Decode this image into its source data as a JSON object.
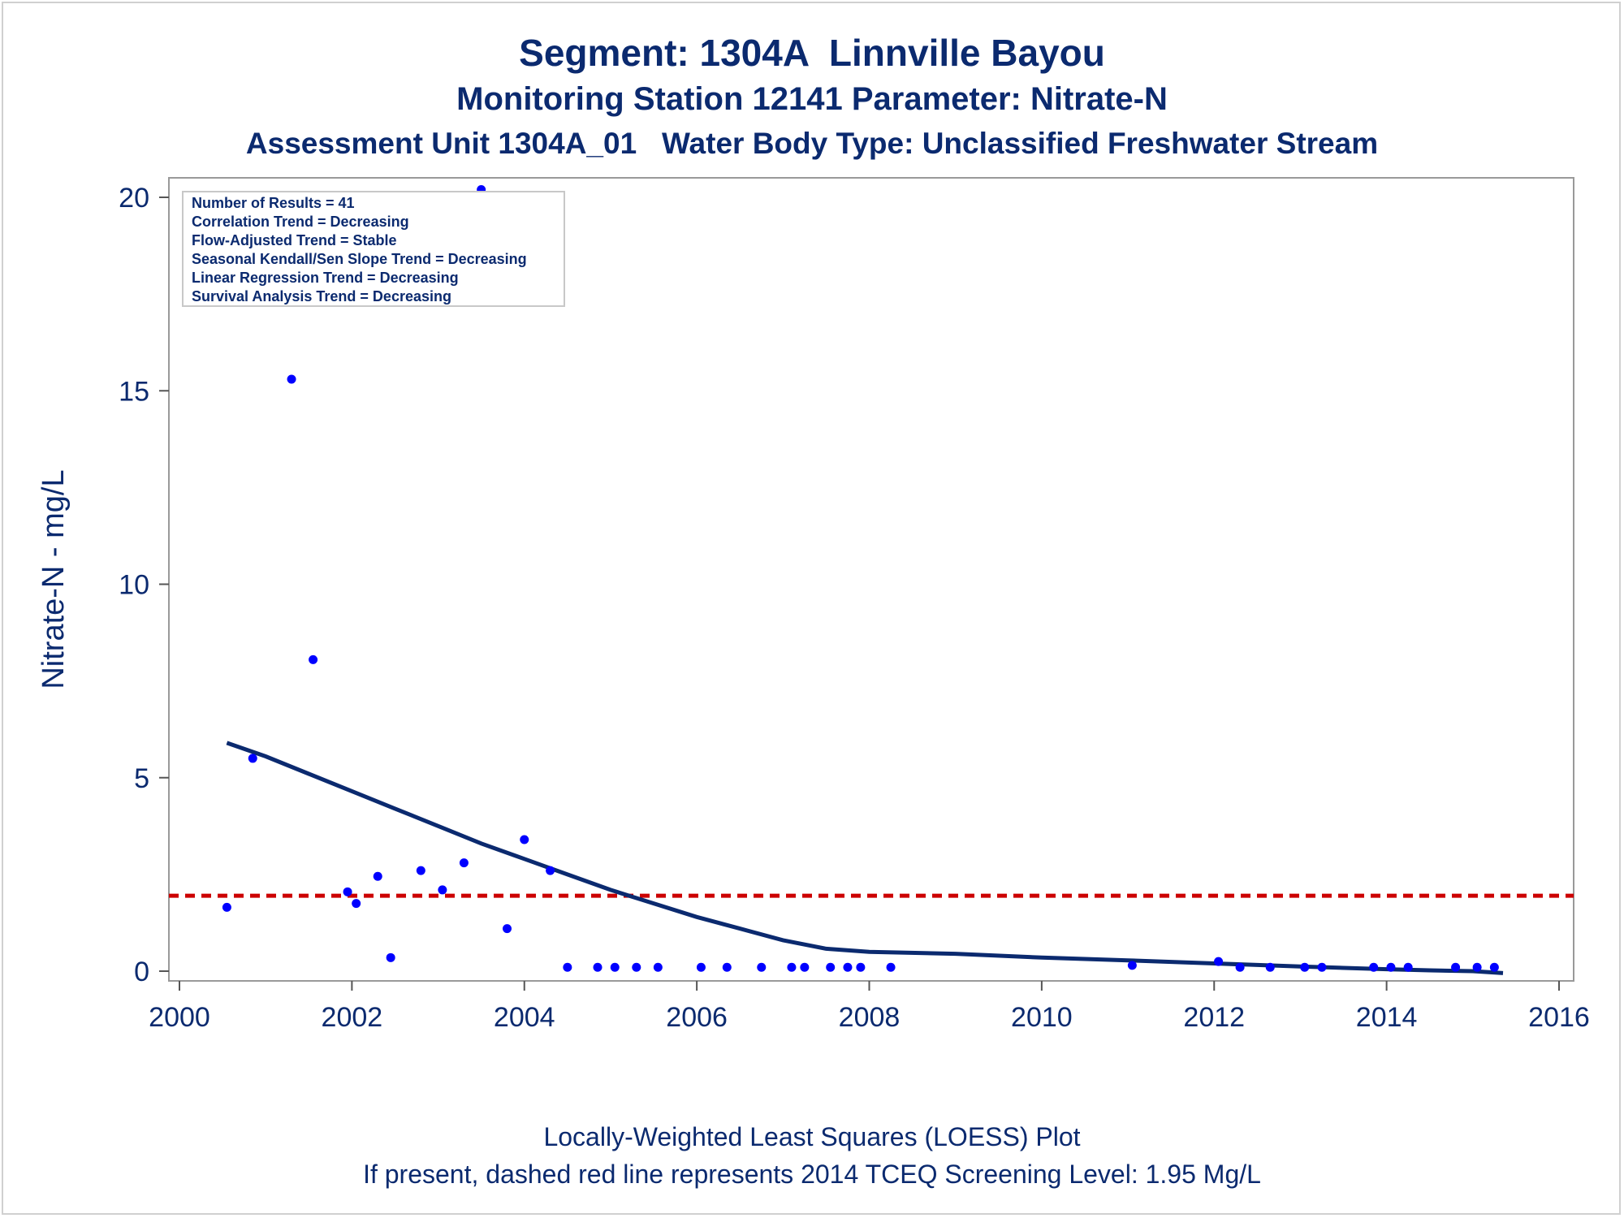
{
  "chart_data": {
    "type": "scatter",
    "title": "Segment: 1304A  Linnville Bayou",
    "subtitle": "Monitoring Station 12141 Parameter: Nitrate-N",
    "subtitle2": "Assessment Unit 1304A_01   Water Body Type: Unclassified Freshwater Stream",
    "xlabel": "",
    "ylabel": "Nitrate-N - mg/L",
    "xlim": [
      2000,
      2016
    ],
    "ylim": [
      0,
      20
    ],
    "x_ticks": [
      2000,
      2002,
      2004,
      2006,
      2008,
      2010,
      2012,
      2014,
      2016
    ],
    "y_ticks": [
      0,
      5,
      10,
      15,
      20
    ],
    "grid": false,
    "points": {
      "x": [
        2000.55,
        2000.85,
        2001.3,
        2001.55,
        2001.95,
        2002.05,
        2002.3,
        2002.45,
        2002.8,
        2003.05,
        2003.3,
        2003.5,
        2003.8,
        2004.0,
        2004.3,
        2004.5,
        2004.85,
        2005.05,
        2005.3,
        2005.55,
        2006.05,
        2006.35,
        2006.75,
        2007.1,
        2007.25,
        2007.55,
        2007.75,
        2007.9,
        2008.25,
        2011.05,
        2012.05,
        2012.3,
        2012.65,
        2013.05,
        2013.25,
        2013.85,
        2014.05,
        2014.25,
        2014.8,
        2015.05,
        2015.25
      ],
      "y": [
        1.65,
        5.5,
        15.3,
        8.05,
        2.05,
        1.75,
        2.45,
        0.35,
        2.6,
        2.1,
        2.8,
        20.2,
        1.1,
        3.4,
        2.6,
        0.1,
        0.1,
        0.1,
        0.1,
        0.1,
        0.1,
        0.1,
        0.1,
        0.1,
        0.1,
        0.1,
        0.1,
        0.1,
        0.1,
        0.15,
        0.25,
        0.1,
        0.1,
        0.1,
        0.1,
        0.1,
        0.1,
        0.1,
        0.1,
        0.1,
        0.1
      ]
    },
    "loess": {
      "x": [
        2000.55,
        2001.0,
        2001.5,
        2002.0,
        2002.5,
        2003.0,
        2003.5,
        2004.0,
        2004.5,
        2005.0,
        2005.5,
        2006.0,
        2006.5,
        2007.0,
        2007.5,
        2008.0,
        2009.0,
        2010.0,
        2011.0,
        2012.0,
        2013.0,
        2014.0,
        2014.5,
        2015.0,
        2015.35
      ],
      "y": [
        5.9,
        5.55,
        5.1,
        4.65,
        4.2,
        3.75,
        3.3,
        2.9,
        2.5,
        2.1,
        1.75,
        1.4,
        1.1,
        0.8,
        0.58,
        0.5,
        0.45,
        0.35,
        0.28,
        0.2,
        0.12,
        0.05,
        0.02,
        0.0,
        -0.05
      ]
    },
    "screening_level": 1.95,
    "colors": {
      "points": "#0000ff",
      "loess": "#0b2a6f",
      "screening": "#cc0000",
      "text": "#0b2a6f"
    },
    "inset": [
      "Number of Results = 41",
      "Correlation Trend = Decreasing",
      "Flow-Adjusted Trend = Stable",
      "Seasonal Kendall/Sen Slope Trend = Decreasing",
      "Linear Regression Trend = Decreasing",
      "Survival Analysis Trend = Decreasing"
    ],
    "footnotes": [
      "Locally-Weighted Least Squares (LOESS) Plot",
      "If present, dashed red line represents 2014 TCEQ Screening Level: 1.95 Mg/L"
    ]
  }
}
